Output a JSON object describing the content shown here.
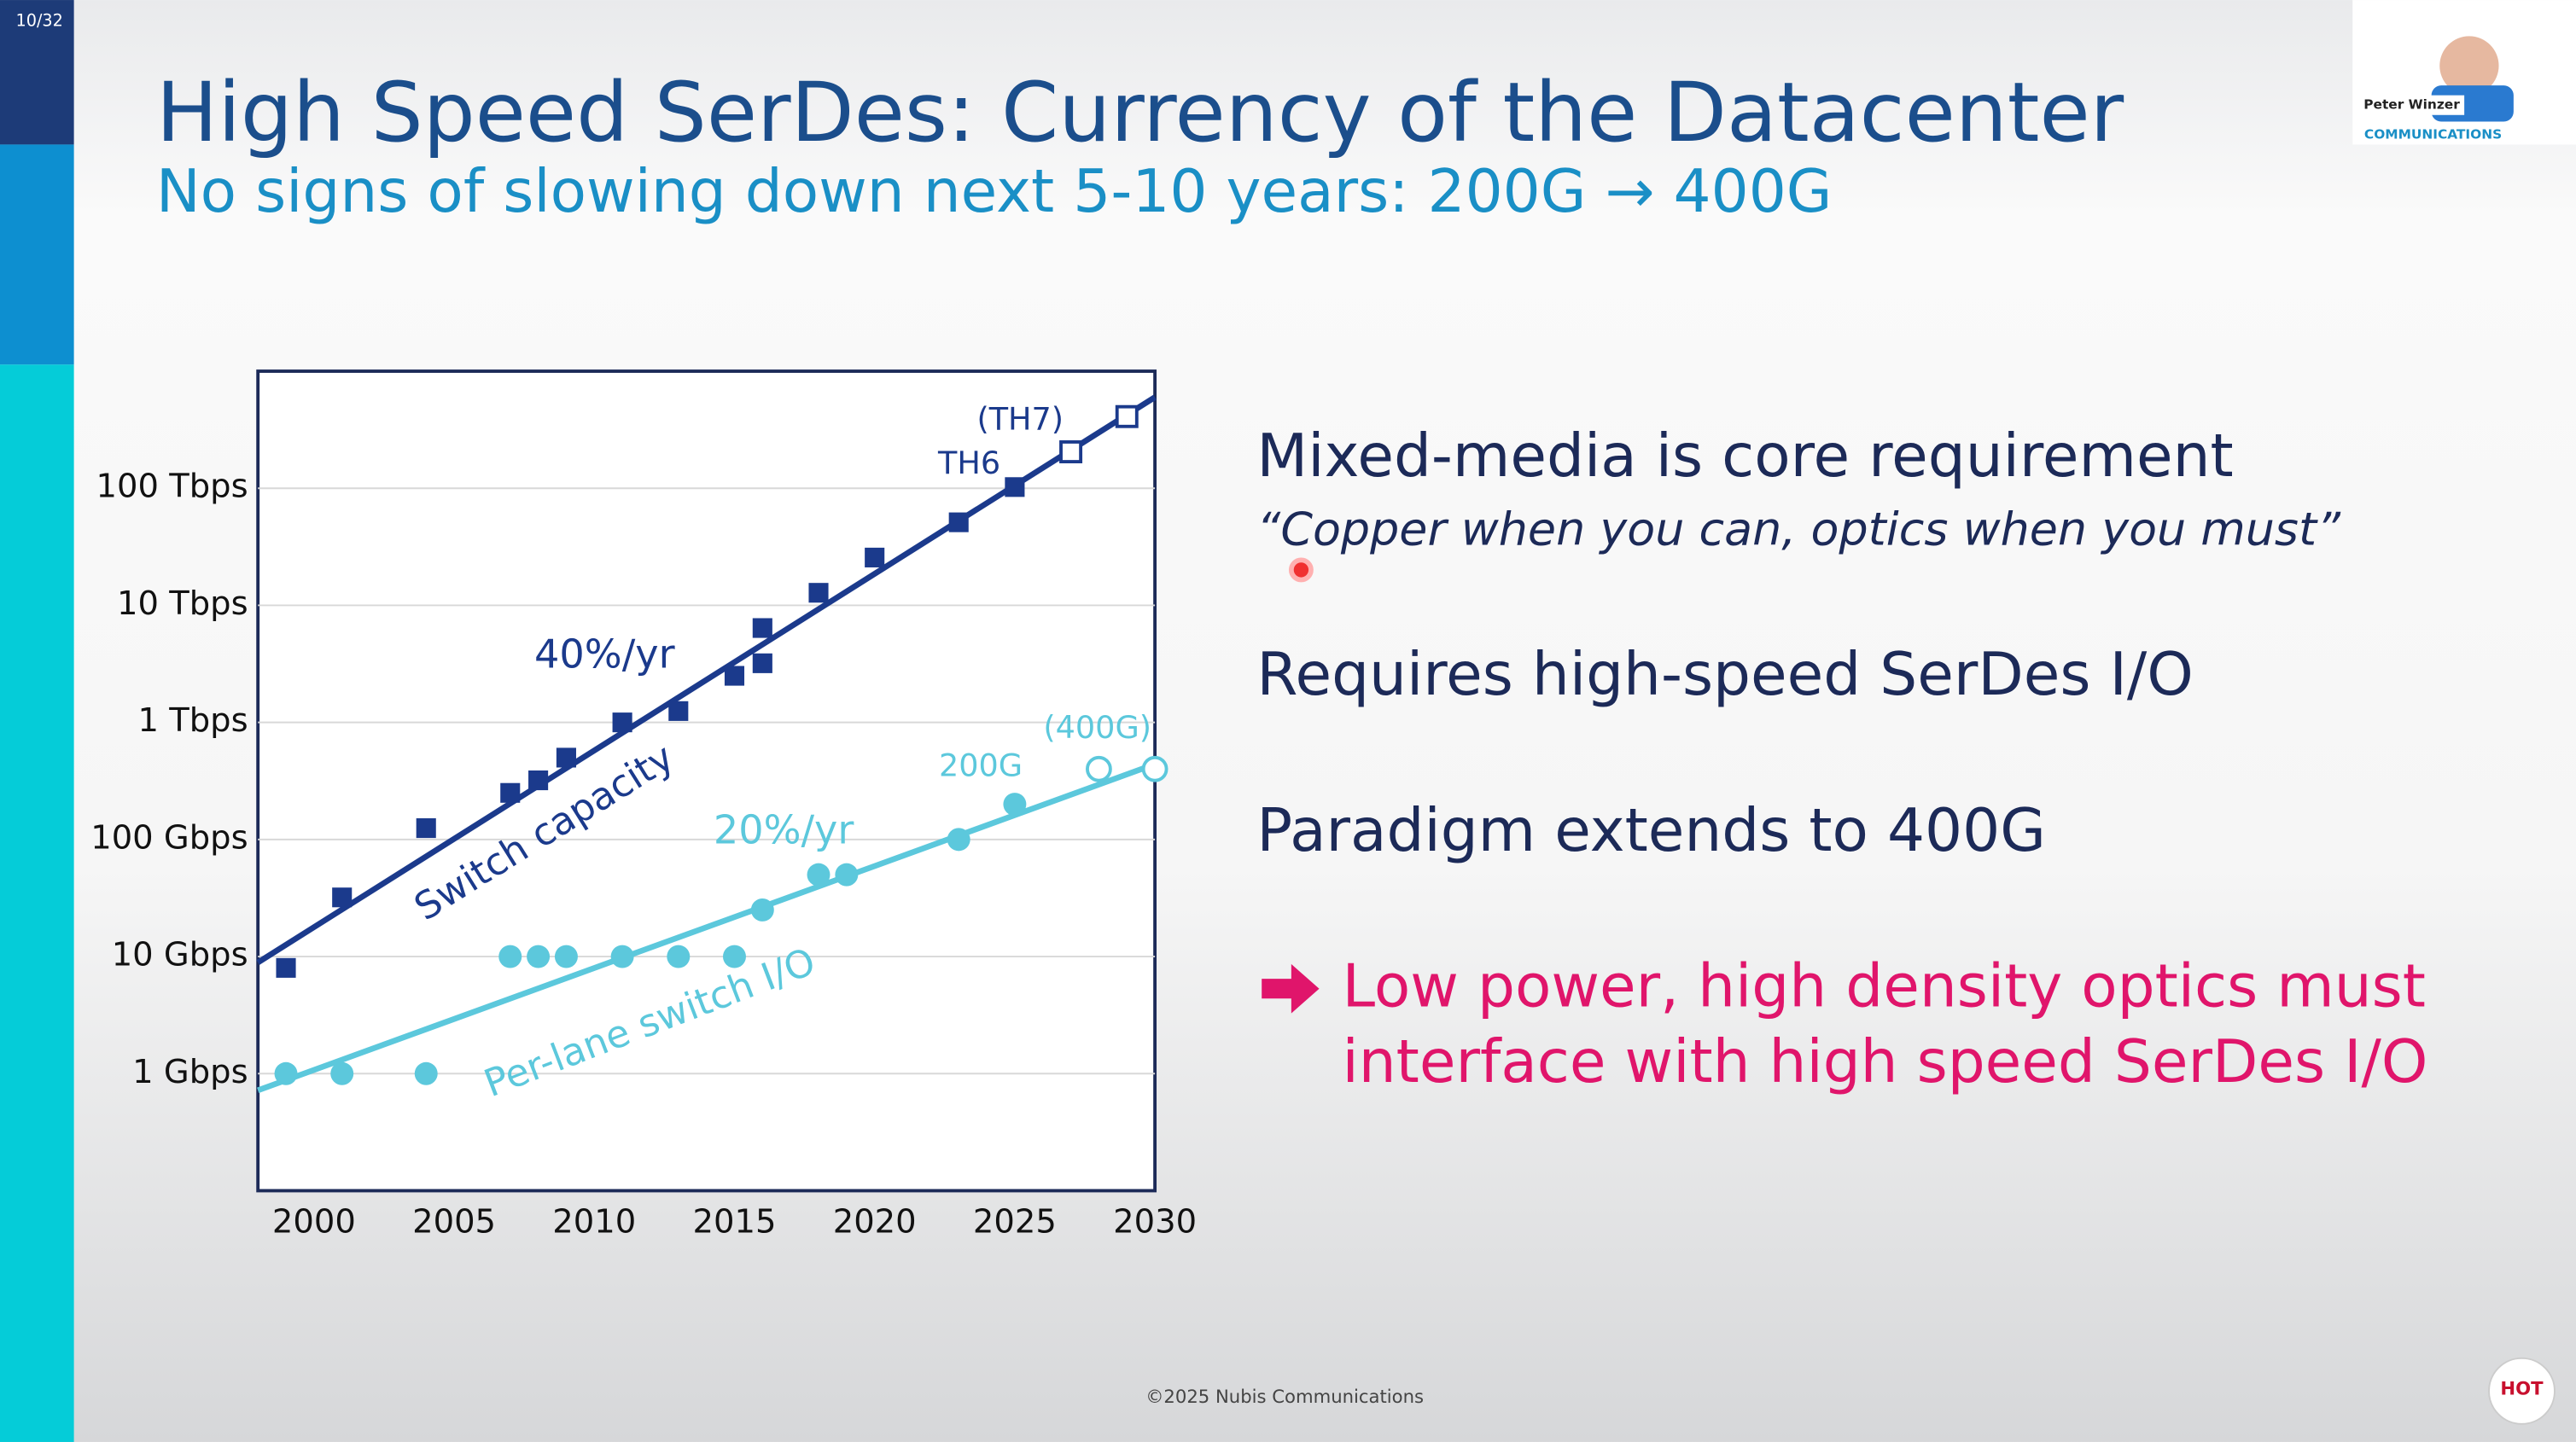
{
  "slide_number": "10/32",
  "title": "High Speed SerDes: Currency of the Datacenter",
  "subtitle": "No signs of slowing down next 5-10 years: 200G → 400G",
  "points": [
    "Mixed-media is core requirement",
    "Requires high-speed SerDes I/O",
    "Paradigm extends to 400G"
  ],
  "quote": "“Copper when you can, optics when you must”",
  "highlight": [
    "Low power, high density optics must",
    "interface with high speed SerDes I/O"
  ],
  "footer": "©2025 Nubis Communications",
  "speaker": {
    "name": "Peter Winzer",
    "org": "COMMUNICATIONS"
  },
  "logo": "HOT",
  "chart_data": {
    "type": "scatter",
    "log_y": true,
    "grid": true,
    "xlim": [
      1998,
      2030
    ],
    "xticks": [
      2000,
      2005,
      2010,
      2015,
      2020,
      2025,
      2030
    ],
    "ylim": [
      0.1,
      1000000
    ],
    "yticks": [
      {
        "value": 1,
        "label": "1 Gbps"
      },
      {
        "value": 10,
        "label": "10 Gbps"
      },
      {
        "value": 100,
        "label": "100 Gbps"
      },
      {
        "value": 1000,
        "label": "1 Tbps"
      },
      {
        "value": 10000,
        "label": "10 Tbps"
      },
      {
        "value": 100000,
        "label": "100 Tbps"
      }
    ],
    "series": [
      {
        "name": "Switch capacity",
        "color": "#1b3a8c",
        "marker": "square",
        "x": [
          1999,
          2001,
          2004,
          2007,
          2008,
          2009,
          2011,
          2013,
          2015,
          2016,
          2016,
          2018,
          2020,
          2023,
          2025,
          2027,
          2029
        ],
        "values": [
          8,
          32,
          125,
          250,
          320,
          500,
          1000,
          1250,
          2500,
          6400,
          3200,
          12800,
          25600,
          51200,
          102400,
          204800,
          409600
        ],
        "open": [
          false,
          false,
          false,
          false,
          false,
          false,
          false,
          false,
          false,
          false,
          false,
          false,
          false,
          false,
          false,
          true,
          true
        ],
        "fit_x": [
          1998,
          2030
        ],
        "fit_values": [
          8.9,
          600000
        ]
      },
      {
        "name": "Per-lane switch I/O",
        "color": "#5cc8dc",
        "marker": "circle",
        "x": [
          1999,
          2001,
          2004,
          2007,
          2008,
          2009,
          2011,
          2013,
          2015,
          2016,
          2018,
          2019,
          2023,
          2025,
          2028,
          2030
        ],
        "values": [
          1,
          1,
          1,
          10,
          10,
          10,
          10,
          10,
          10,
          25,
          50,
          50,
          100,
          200,
          400,
          400
        ],
        "open": [
          false,
          false,
          false,
          false,
          false,
          false,
          false,
          false,
          false,
          false,
          false,
          false,
          false,
          false,
          true,
          true
        ],
        "fit_x": [
          1998,
          2030
        ],
        "fit_values": [
          0.72,
          440
        ]
      }
    ],
    "annotations": [
      "40%/yr",
      "20%/yr",
      "(TH7)",
      "TH6",
      "200G",
      "(400G)"
    ]
  }
}
